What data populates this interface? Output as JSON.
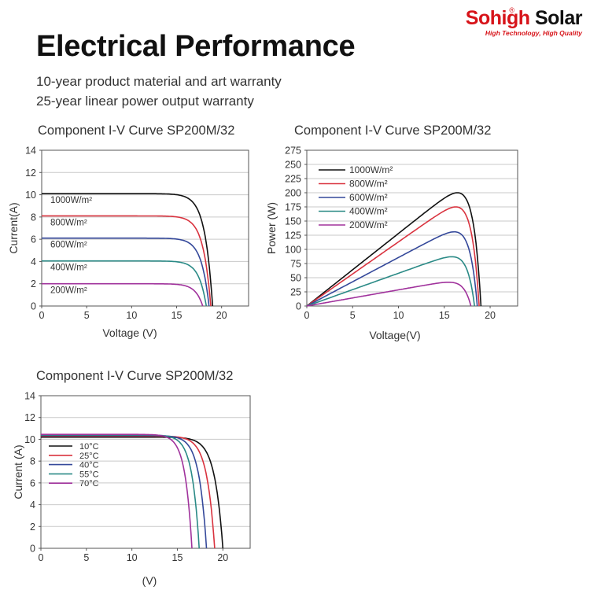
{
  "logo": {
    "brand_part1": "Sohigh",
    "brand_part2": " Solar",
    "registered": "®",
    "tagline": "High Technology, High Quality",
    "colors": {
      "brand_red": "#d7141a",
      "brand_black": "#111111"
    }
  },
  "header": {
    "title": "Electrical Performance",
    "warranty_1": "10-year product material and art warranty",
    "warranty_2": "25-year linear power output warranty"
  },
  "chart_data": [
    {
      "id": "iv-irradiance",
      "type": "line",
      "title": "Component I-V Curve SP200M/32",
      "xlabel": "Voltage (V)",
      "ylabel": "Current(A)",
      "xlim": [
        0,
        23
      ],
      "ylim": [
        0,
        14
      ],
      "xticks": [
        0,
        5,
        10,
        15,
        20
      ],
      "yticks": [
        0,
        2,
        4,
        6,
        8,
        10,
        12,
        14
      ],
      "grid": "horizontal",
      "legend": "inline-labels",
      "series": [
        {
          "name": "1000W/m²",
          "color": "#111111",
          "isc": 10.1,
          "voc": 19.0
        },
        {
          "name": "800W/m²",
          "color": "#d9333f",
          "isc": 8.1,
          "voc": 18.8
        },
        {
          "name": "600W/m²",
          "color": "#34489a",
          "isc": 6.1,
          "voc": 18.6
        },
        {
          "name": "400W/m²",
          "color": "#2a8a86",
          "isc": 4.05,
          "voc": 18.3
        },
        {
          "name": "200W/m²",
          "color": "#a0329c",
          "isc": 2.0,
          "voc": 17.9
        }
      ]
    },
    {
      "id": "pv-irradiance",
      "type": "line",
      "title": "Component I-V Curve SP200M/32",
      "xlabel": "Voltage(V)",
      "ylabel": "Power (W)",
      "xlim": [
        0,
        23
      ],
      "ylim": [
        0,
        275
      ],
      "xticks": [
        0,
        5,
        10,
        15,
        20
      ],
      "yticks": [
        0,
        25,
        50,
        75,
        100,
        125,
        150,
        175,
        200,
        225,
        250,
        275
      ],
      "grid": "horizontal",
      "legend": "top-left",
      "series": [
        {
          "name": "1000W/m²",
          "color": "#111111",
          "vmp": 16.3,
          "pmax": 200,
          "voc": 19.0
        },
        {
          "name": "800W/m²",
          "color": "#d9333f",
          "vmp": 16.2,
          "pmax": 175,
          "voc": 18.8
        },
        {
          "name": "600W/m²",
          "color": "#34489a",
          "vmp": 16.0,
          "pmax": 131,
          "voc": 18.6
        },
        {
          "name": "400W/m²",
          "color": "#2a8a86",
          "vmp": 15.8,
          "pmax": 87,
          "voc": 18.3
        },
        {
          "name": "200W/m²",
          "color": "#a0329c",
          "vmp": 15.4,
          "pmax": 42,
          "voc": 17.9
        }
      ]
    },
    {
      "id": "iv-temperature",
      "type": "line",
      "title": "Component I-V Curve SP200M/32",
      "xlabel": "(V)",
      "ylabel": "Current (A)",
      "xlim": [
        0,
        23
      ],
      "ylim": [
        0,
        14
      ],
      "xticks": [
        0,
        5,
        10,
        15,
        20
      ],
      "yticks": [
        0,
        2,
        4,
        6,
        8,
        10,
        12,
        14
      ],
      "grid": "horizontal",
      "legend": "top-left",
      "series": [
        {
          "name": "10°C",
          "color": "#111111",
          "isc": 10.2,
          "voc": 20.0
        },
        {
          "name": "25°C",
          "color": "#d9333f",
          "isc": 10.3,
          "voc": 19.1
        },
        {
          "name": "40°C",
          "color": "#34489a",
          "isc": 10.35,
          "voc": 18.2
        },
        {
          "name": "55°C",
          "color": "#2a8a86",
          "isc": 10.4,
          "voc": 17.4
        },
        {
          "name": "70°C",
          "color": "#a0329c",
          "isc": 10.45,
          "voc": 16.6
        }
      ]
    }
  ]
}
